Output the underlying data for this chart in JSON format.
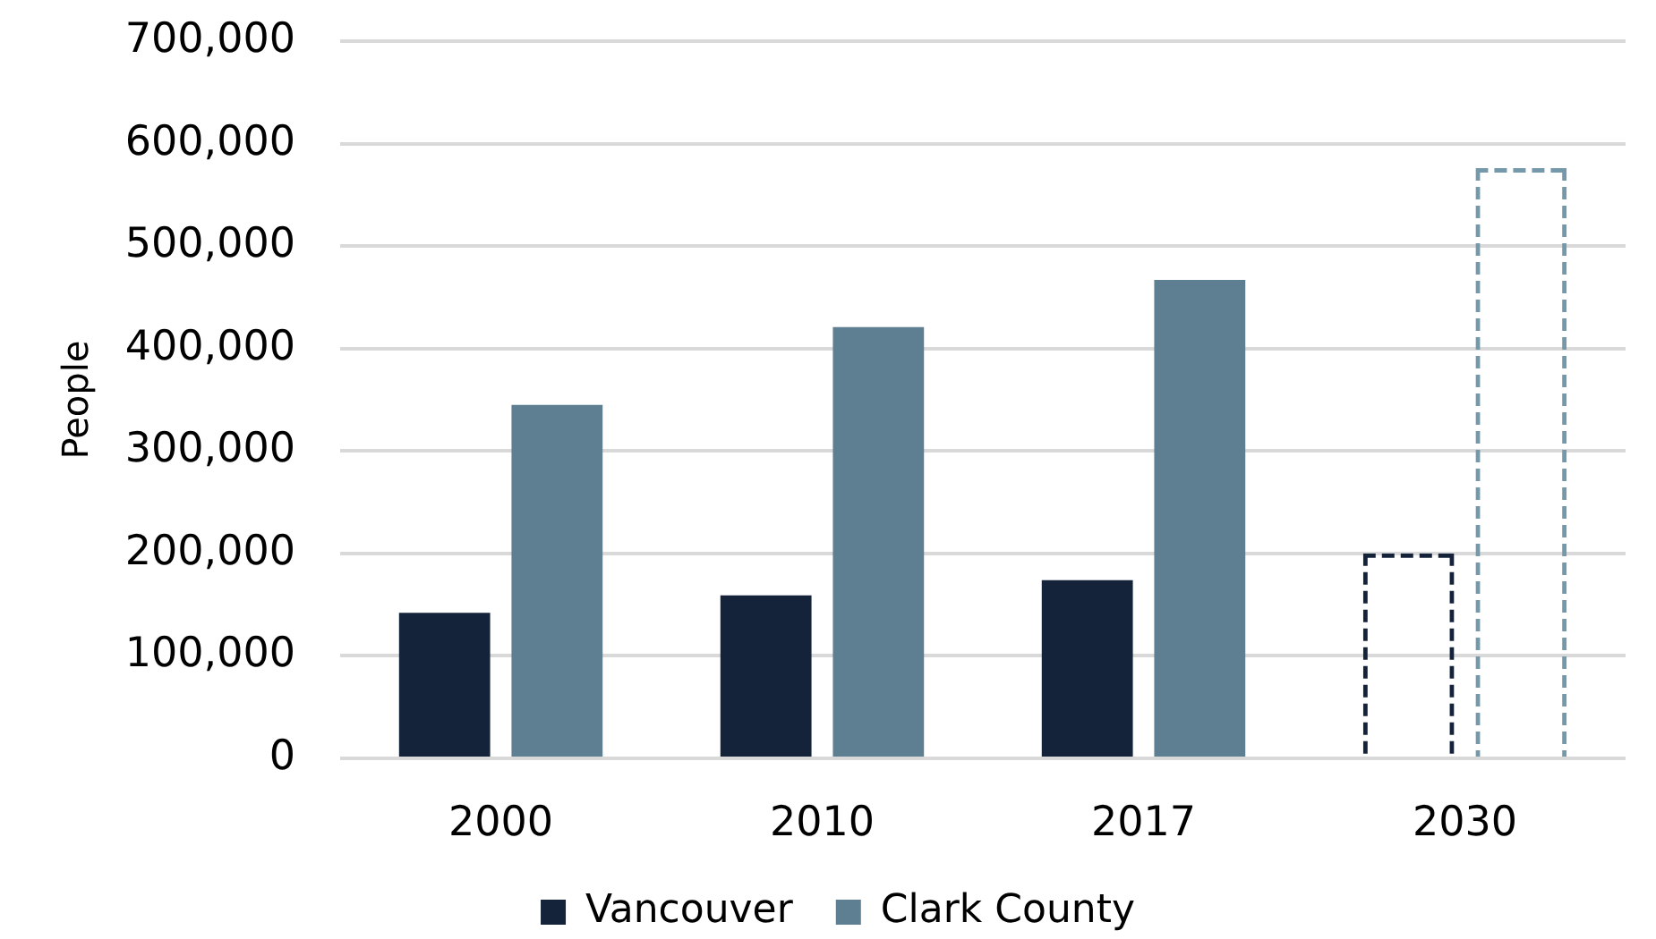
{
  "chart_data": {
    "type": "bar",
    "ylabel": "People",
    "categories": [
      "2000",
      "2010",
      "2017",
      "2030"
    ],
    "series": [
      {
        "name": "Vancouver",
        "color": "#14223a",
        "values": [
          142000,
          159000,
          174000,
          null
        ]
      },
      {
        "name": "Clark County",
        "color": "#5e7f92",
        "values": [
          345000,
          421000,
          467000,
          null
        ]
      },
      {
        "color": "#14223a",
        "line_style": "dashed",
        "values": [
          null,
          null,
          null,
          200000
        ]
      },
      {
        "color": "#7598ab",
        "line_style": "dashed",
        "values": [
          null,
          null,
          null,
          576000
        ]
      }
    ],
    "ylim": [
      0,
      700000
    ],
    "yticks": [
      0,
      {
        "value": 100000,
        "label": "100,000"
      },
      {
        "value": 200000,
        "label": "200,000"
      },
      {
        "value": 300000,
        "label": "300,000"
      },
      {
        "value": 400000,
        "label": "400,000"
      },
      {
        "value": 500000,
        "label": "500,000"
      },
      {
        "value": 600000,
        "label": "600,000"
      },
      {
        "value": 700000,
        "label": "700,000"
      }
    ],
    "grid": "y",
    "legend": "bottom"
  }
}
